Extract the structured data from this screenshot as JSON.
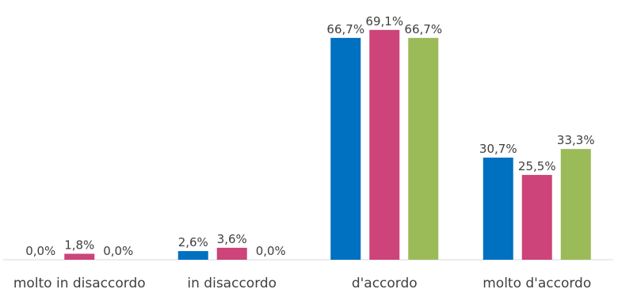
{
  "chart_data": {
    "type": "bar",
    "categories": [
      "molto in disaccordo",
      "in disaccordo",
      "d'accordo",
      "molto d'accordo"
    ],
    "series": [
      {
        "values": [
          0.0,
          2.6,
          66.7,
          30.7
        ],
        "labels": [
          "0,0%",
          "2,6%",
          "66,7%",
          "30,7%"
        ],
        "color": "#0070C0"
      },
      {
        "values": [
          1.8,
          3.6,
          69.1,
          25.5
        ],
        "labels": [
          "1,8%",
          "3,6%",
          "69,1%",
          "25,5%"
        ],
        "color": "#CC4479"
      },
      {
        "values": [
          0.0,
          0.0,
          66.7,
          33.3
        ],
        "labels": [
          "0,0%",
          "0,0%",
          "66,7%",
          "33,3%"
        ],
        "color": "#9BBB59"
      }
    ],
    "ylim": [
      0,
      70
    ],
    "grid": false,
    "legend": "none",
    "axis_color": "#d9d9d9"
  }
}
